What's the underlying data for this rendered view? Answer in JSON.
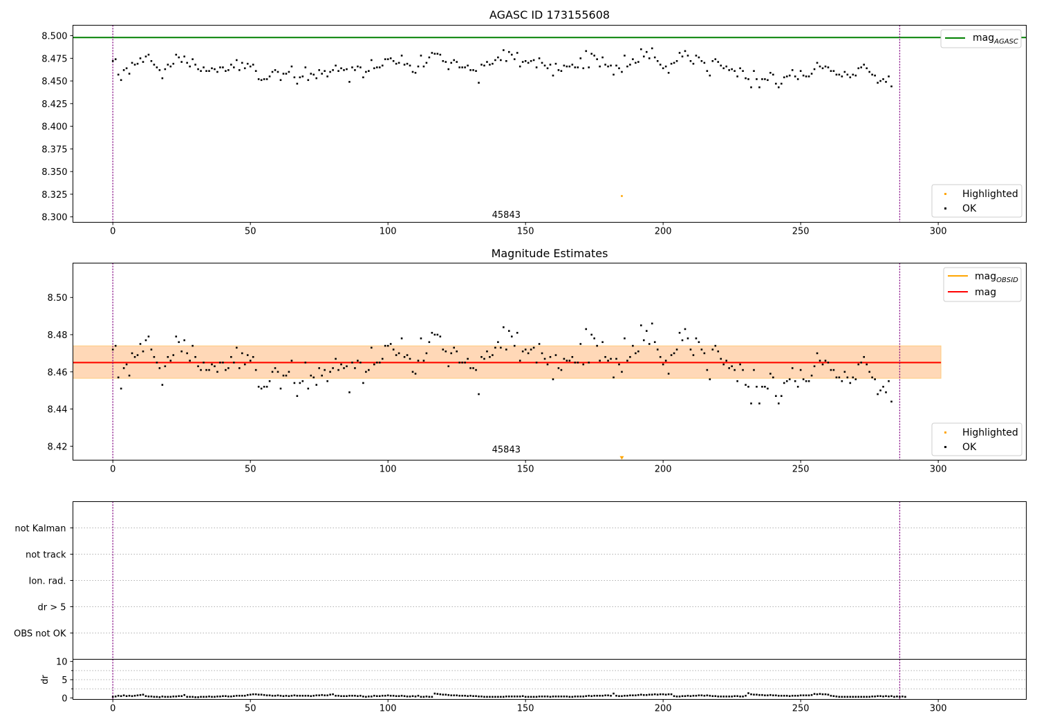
{
  "chart_data": [
    {
      "type": "scatter",
      "title": "AGASC ID 173155608",
      "xlabel": "",
      "ylabel": "",
      "xlim": [
        -14.5,
        332
      ],
      "ylim": [
        8.294,
        8.5115
      ],
      "x_ticks": [
        0,
        50,
        100,
        150,
        200,
        250,
        300
      ],
      "y_ticks": [
        8.3,
        8.325,
        8.35,
        8.375,
        8.4,
        8.425,
        8.45,
        8.475,
        8.5
      ],
      "y_tick_labels": [
        "8.300",
        "8.325",
        "8.350",
        "8.375",
        "8.400",
        "8.425",
        "8.450",
        "8.475",
        "8.500"
      ],
      "obsid_boundaries": [
        0,
        286
      ],
      "hline": {
        "name": "mag_AGASC",
        "label_main": "mag",
        "label_sub": "AGASC",
        "value": 8.498,
        "color": "#008000"
      },
      "highlighted_points": [
        {
          "x": 185,
          "y": 8.323
        }
      ],
      "annotation": {
        "text": "45843",
        "x": 143,
        "y": 8.299
      },
      "legend_lines": [
        {
          "label_main": "mag",
          "label_sub": "AGASC",
          "color": "#008000"
        }
      ],
      "legend_points": [
        {
          "label": "Highlighted",
          "color": "#FFA500"
        },
        {
          "label": "OK",
          "color": "#000000"
        }
      ]
    },
    {
      "type": "scatter",
      "title": "Magnitude Estimates",
      "xlabel": "",
      "ylabel": "",
      "xlim": [
        -14.5,
        332
      ],
      "ylim": [
        8.4125,
        8.5185
      ],
      "x_ticks": [
        0,
        50,
        100,
        150,
        200,
        250,
        300
      ],
      "y_ticks": [
        8.42,
        8.44,
        8.46,
        8.48,
        8.5
      ],
      "y_tick_labels": [
        "8.42",
        "8.44",
        "8.46",
        "8.48",
        "8.50"
      ],
      "obsid_boundaries": [
        0,
        286
      ],
      "mag": {
        "value": 8.465,
        "band_low": 8.4565,
        "band_high": 8.474,
        "x_start": -14.5,
        "x_end": 301,
        "color": "#FF0000"
      },
      "mag_obsid": {
        "value": 8.465,
        "band_low": 8.4565,
        "band_high": 8.474,
        "x_start": -14.5,
        "x_end": 301,
        "color": "#FFA500"
      },
      "highlighted_points": [
        {
          "x": 185,
          "y": 8.4135,
          "marker": "triangle-down"
        }
      ],
      "annotation": {
        "text": "45843",
        "x": 143,
        "y": 8.4165
      },
      "legend_lines": [
        {
          "label_main": "mag",
          "label_sub": "OBSID",
          "color": "#FFA500"
        },
        {
          "label_main": "mag",
          "label_sub": "",
          "color": "#FF0000"
        }
      ],
      "legend_points": [
        {
          "label": "Highlighted",
          "color": "#FFA500"
        },
        {
          "label": "OK",
          "color": "#000000"
        }
      ]
    },
    {
      "type": "scatter",
      "title": "",
      "xlabel": "",
      "ylabel": "",
      "xlim": [
        -14.5,
        332
      ],
      "categories": [
        "not Kalman",
        "not track",
        "Ion. rad.",
        "dr > 5",
        "OBS not OK"
      ],
      "obsid_boundaries": [
        0,
        286
      ],
      "grid": "dotted horizontal"
    },
    {
      "type": "scatter",
      "title": "",
      "xlabel": "",
      "ylabel": "dr",
      "xlim": [
        -14.5,
        332
      ],
      "ylim": [
        -0.4,
        10.6
      ],
      "x_ticks": [
        0,
        50,
        100,
        150,
        200,
        250,
        300
      ],
      "y_ticks": [
        0,
        5,
        10
      ],
      "y_tick_labels": [
        "0",
        "5",
        "10"
      ],
      "obsid_boundaries": [
        0,
        286
      ]
    }
  ],
  "series": {
    "mag_obs": [
      8.472,
      8.474,
      8.457,
      8.451,
      8.462,
      8.464,
      8.458,
      8.47,
      8.468,
      8.469,
      8.475,
      8.471,
      8.477,
      8.479,
      8.472,
      8.468,
      8.465,
      8.462,
      8.453,
      8.463,
      8.468,
      8.466,
      8.469,
      8.479,
      8.476,
      8.471,
      8.477,
      8.47,
      8.466,
      8.474,
      8.468,
      8.463,
      8.461,
      8.465,
      8.461,
      8.461,
      8.464,
      8.463,
      8.46,
      8.465,
      8.465,
      8.461,
      8.462,
      8.468,
      8.465,
      8.473,
      8.462,
      8.47,
      8.464,
      8.469,
      8.466,
      8.468,
      8.461,
      8.452,
      8.451,
      8.452,
      8.452,
      8.455,
      8.46,
      8.462,
      8.46,
      8.451,
      8.458,
      8.458,
      8.46,
      8.466,
      8.454,
      8.447,
      8.454,
      8.455,
      8.465,
      8.451,
      8.458,
      8.457,
      8.453,
      8.462,
      8.458,
      8.461,
      8.455,
      8.46,
      8.462,
      8.467,
      8.461,
      8.464,
      8.462,
      8.463,
      8.449,
      8.465,
      8.462,
      8.466,
      8.465,
      8.454,
      8.46,
      8.461,
      8.473,
      8.464,
      8.465,
      8.465,
      8.467,
      8.474,
      8.474,
      8.475,
      8.472,
      8.469,
      8.47,
      8.478,
      8.468,
      8.469,
      8.467,
      8.46,
      8.459,
      8.466,
      8.478,
      8.466,
      8.47,
      8.476,
      8.481,
      8.48,
      8.48,
      8.479,
      8.472,
      8.471,
      8.463,
      8.47,
      8.473,
      8.471,
      8.465,
      8.465,
      8.465,
      8.467,
      8.462,
      8.462,
      8.461,
      8.448,
      8.468,
      8.467,
      8.471,
      8.468,
      8.469,
      8.473,
      8.476,
      8.473,
      8.484,
      8.472,
      8.482,
      8.479,
      8.474,
      8.481,
      8.466,
      8.471,
      8.472,
      8.47,
      8.472,
      8.473,
      8.465,
      8.475,
      8.47,
      8.467,
      8.464,
      8.468,
      8.456,
      8.469,
      8.462,
      8.461,
      8.467,
      8.466,
      8.466,
      8.468,
      8.465,
      8.465,
      8.475,
      8.464,
      8.483,
      8.465,
      8.48,
      8.478,
      8.474,
      8.466,
      8.476,
      8.468,
      8.466,
      8.467,
      8.457,
      8.467,
      8.464,
      8.46,
      8.478,
      8.466,
      8.468,
      8.474,
      8.47,
      8.471,
      8.485,
      8.477,
      8.482,
      8.475,
      8.486,
      8.476,
      8.472,
      8.468,
      8.464,
      8.466,
      8.459,
      8.469,
      8.47,
      8.472,
      8.481,
      8.477,
      8.483,
      8.478,
      8.472,
      8.469,
      8.478,
      8.476,
      8.472,
      8.47,
      8.461,
      8.456,
      8.472,
      8.474,
      8.471,
      8.467,
      8.464,
      8.466,
      8.462,
      8.463,
      8.461,
      8.455,
      8.464,
      8.461,
      8.453,
      8.452,
      8.443,
      8.461,
      8.452,
      8.443,
      8.452,
      8.452,
      8.451,
      8.459,
      8.457,
      8.447,
      8.443,
      8.447,
      8.454,
      8.455,
      8.456,
      8.462,
      8.455,
      8.452,
      8.461,
      8.456,
      8.455,
      8.455,
      8.458,
      8.463,
      8.47,
      8.466,
      8.464,
      8.466,
      8.465,
      8.461,
      8.461,
      8.457,
      8.457,
      8.455,
      8.46,
      8.457,
      8.454,
      8.457,
      8.456,
      8.464,
      8.465,
      8.468,
      8.464,
      8.46,
      8.457,
      8.456,
      8.448,
      8.45,
      8.452,
      8.449,
      8.455,
      8.444
    ],
    "dr": [
      0.3,
      0.4,
      0.6,
      0.5,
      0.7,
      0.5,
      0.6,
      0.5,
      0.6,
      0.7,
      0.8,
      0.9,
      0.5,
      0.4,
      0.4,
      0.3,
      0.3,
      0.2,
      0.4,
      0.3,
      0.3,
      0.3,
      0.4,
      0.4,
      0.5,
      0.5,
      0.8,
      0.3,
      0.3,
      0.3,
      0.2,
      0.2,
      0.3,
      0.3,
      0.3,
      0.4,
      0.3,
      0.3,
      0.4,
      0.4,
      0.5,
      0.5,
      0.4,
      0.4,
      0.5,
      0.6,
      0.6,
      0.6,
      0.6,
      0.8,
      0.9,
      1.0,
      1.0,
      0.9,
      0.9,
      0.8,
      0.7,
      0.7,
      0.6,
      0.6,
      0.7,
      0.6,
      0.5,
      0.6,
      0.5,
      0.6,
      0.7,
      0.6,
      0.6,
      0.6,
      0.6,
      0.6,
      0.5,
      0.6,
      0.7,
      0.7,
      0.8,
      0.7,
      0.7,
      0.9,
      1.0,
      0.6,
      0.6,
      0.5,
      0.5,
      0.5,
      0.6,
      0.6,
      0.6,
      0.5,
      0.6,
      0.4,
      0.3,
      0.4,
      0.4,
      0.6,
      0.5,
      0.5,
      0.6,
      0.6,
      0.7,
      0.6,
      0.6,
      0.5,
      0.5,
      0.6,
      0.5,
      0.4,
      0.4,
      0.5,
      0.4,
      0.6,
      0.3,
      0.3,
      0.4,
      0.3,
      0.3,
      1.2,
      1.1,
      1.0,
      0.9,
      0.9,
      0.8,
      0.7,
      0.7,
      0.7,
      0.6,
      0.6,
      0.6,
      0.5,
      0.6,
      0.5,
      0.5,
      0.4,
      0.4,
      0.3,
      0.3,
      0.3,
      0.3,
      0.3,
      0.3,
      0.3,
      0.3,
      0.4,
      0.4,
      0.4,
      0.4,
      0.4,
      0.4,
      0.5,
      0.3,
      0.3,
      0.3,
      0.3,
      0.3,
      0.4,
      0.4,
      0.4,
      0.4,
      0.3,
      0.4,
      0.4,
      0.4,
      0.4,
      0.4,
      0.4,
      0.3,
      0.3,
      0.4,
      0.4,
      0.4,
      0.4,
      0.5,
      0.6,
      0.5,
      0.6,
      0.6,
      0.6,
      0.6,
      0.7,
      0.7,
      0.6,
      1.2,
      0.6,
      0.5,
      0.5,
      0.6,
      0.6,
      0.7,
      0.7,
      0.7,
      0.8,
      0.9,
      0.8,
      0.8,
      0.9,
      0.9,
      1.0,
      0.9,
      1.0,
      1.0,
      0.9,
      1.0,
      1.0,
      0.5,
      0.4,
      0.4,
      0.5,
      0.5,
      0.6,
      0.5,
      0.6,
      0.6,
      0.7,
      0.7,
      0.6,
      0.7,
      0.6,
      0.5,
      0.5,
      0.4,
      0.4,
      0.4,
      0.4,
      0.4,
      0.4,
      0.5,
      0.5,
      0.4,
      0.4,
      0.6,
      1.3,
      1.0,
      0.9,
      0.9,
      0.8,
      0.8,
      0.7,
      0.7,
      0.8,
      0.7,
      0.7,
      0.6,
      0.6,
      0.6,
      0.6,
      0.5,
      0.6,
      0.6,
      0.6,
      0.7,
      0.7,
      0.7,
      0.7,
      0.8,
      1.1,
      1.0,
      1.1,
      1.0,
      1.0,
      0.9,
      0.6,
      0.5,
      0.4,
      0.3,
      0.3,
      0.3,
      0.3,
      0.3,
      0.3,
      0.3,
      0.3,
      0.3,
      0.3,
      0.3,
      0.3,
      0.4,
      0.4,
      0.5,
      0.5,
      0.4,
      0.5,
      0.4,
      0.5,
      0.3,
      0.4,
      0.3,
      0.4,
      0.3
    ]
  }
}
